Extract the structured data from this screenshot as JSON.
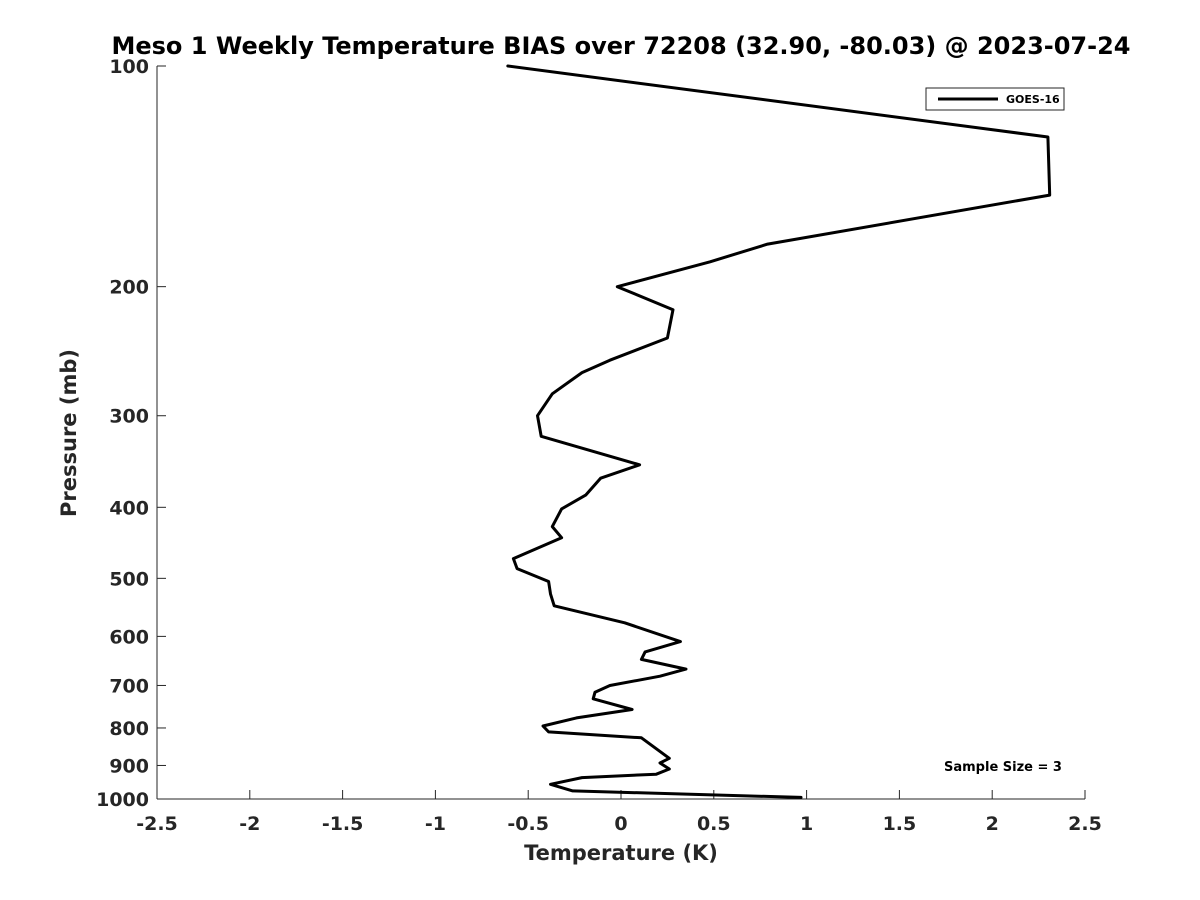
{
  "chart_data": {
    "type": "line",
    "title": "Meso 1 Weekly Temperature BIAS over 72208 (32.90, -80.03) @ 2023-07-24",
    "xlabel": "Temperature (K)",
    "ylabel": "Pressure (mb)",
    "xlim": [
      -2.5,
      2.5
    ],
    "ylim": [
      100,
      1000
    ],
    "y_scale": "log",
    "y_reversed": true,
    "grid": false,
    "x_ticks": [
      -2.5,
      -2,
      -1.5,
      -1,
      -0.5,
      0,
      0.5,
      1,
      1.5,
      2,
      2.5
    ],
    "x_tick_labels": [
      "-2.5",
      "-2",
      "-1.5",
      "-1",
      "-0.5",
      "0",
      "0.5",
      "1",
      "1.5",
      "2",
      "2.5"
    ],
    "y_ticks": [
      100,
      200,
      300,
      400,
      500,
      600,
      700,
      800,
      900,
      1000
    ],
    "y_tick_labels": [
      "100",
      "200",
      "300",
      "400",
      "500",
      "600",
      "700",
      "800",
      "900",
      "1000"
    ],
    "legend_position": "top-right",
    "annotation": "Sample Size = 3",
    "series": [
      {
        "name": "GOES-16",
        "color": "#000000",
        "points": [
          {
            "x": -0.61,
            "p": 100
          },
          {
            "x": 2.3,
            "p": 125
          },
          {
            "x": 2.31,
            "p": 150
          },
          {
            "x": 0.79,
            "p": 175
          },
          {
            "x": 0.48,
            "p": 185
          },
          {
            "x": -0.02,
            "p": 200
          },
          {
            "x": 0.28,
            "p": 215
          },
          {
            "x": 0.25,
            "p": 235
          },
          {
            "x": -0.06,
            "p": 252
          },
          {
            "x": -0.21,
            "p": 262
          },
          {
            "x": -0.37,
            "p": 280
          },
          {
            "x": -0.45,
            "p": 300
          },
          {
            "x": -0.43,
            "p": 320
          },
          {
            "x": 0.1,
            "p": 350
          },
          {
            "x": -0.11,
            "p": 365
          },
          {
            "x": -0.19,
            "p": 385
          },
          {
            "x": -0.32,
            "p": 402
          },
          {
            "x": -0.37,
            "p": 425
          },
          {
            "x": -0.32,
            "p": 440
          },
          {
            "x": -0.58,
            "p": 470
          },
          {
            "x": -0.56,
            "p": 485
          },
          {
            "x": -0.39,
            "p": 505
          },
          {
            "x": -0.38,
            "p": 525
          },
          {
            "x": -0.36,
            "p": 545
          },
          {
            "x": 0.02,
            "p": 575
          },
          {
            "x": 0.32,
            "p": 610
          },
          {
            "x": 0.13,
            "p": 630
          },
          {
            "x": 0.11,
            "p": 645
          },
          {
            "x": 0.35,
            "p": 665
          },
          {
            "x": 0.21,
            "p": 680
          },
          {
            "x": -0.06,
            "p": 700
          },
          {
            "x": -0.14,
            "p": 715
          },
          {
            "x": -0.15,
            "p": 730
          },
          {
            "x": 0.06,
            "p": 755
          },
          {
            "x": -0.24,
            "p": 775
          },
          {
            "x": -0.42,
            "p": 795
          },
          {
            "x": -0.39,
            "p": 810
          },
          {
            "x": 0.11,
            "p": 825
          },
          {
            "x": 0.26,
            "p": 880
          },
          {
            "x": 0.21,
            "p": 893
          },
          {
            "x": 0.26,
            "p": 910
          },
          {
            "x": 0.19,
            "p": 925
          },
          {
            "x": -0.21,
            "p": 935
          },
          {
            "x": -0.38,
            "p": 955
          },
          {
            "x": -0.26,
            "p": 975
          },
          {
            "x": 0.97,
            "p": 995
          }
        ]
      }
    ]
  }
}
